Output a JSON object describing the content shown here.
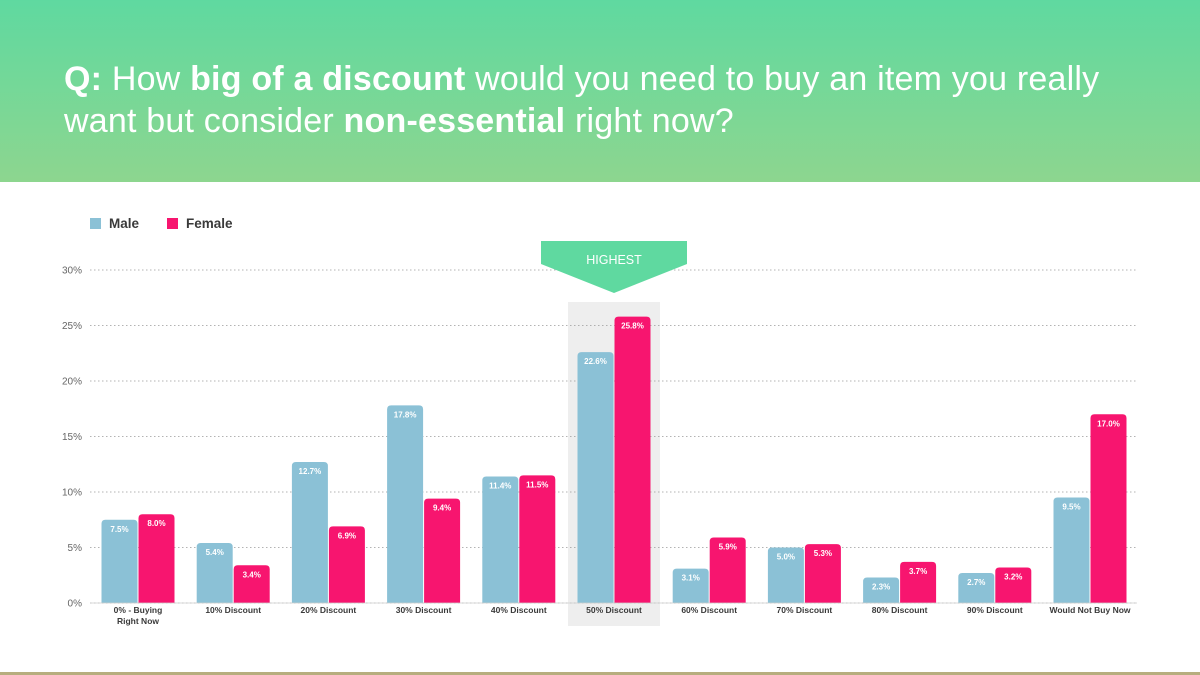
{
  "question": {
    "parts": [
      {
        "text": "Q:",
        "bold": true
      },
      {
        "text": " How ",
        "bold": false
      },
      {
        "text": "big of a discount",
        "bold": true
      },
      {
        "text": " would you need to buy an item you really want but consider ",
        "bold": false
      },
      {
        "text": "non-essential",
        "bold": true
      },
      {
        "text": " right now?",
        "bold": false
      }
    ]
  },
  "legend": {
    "male": "Male",
    "female": "Female"
  },
  "highlight": {
    "label": "HIGHEST",
    "category_index": 5
  },
  "colors": {
    "male": "#8bc1d6",
    "female": "#f7156f",
    "header_top": "#5fd9a0",
    "header_bottom": "#8dd68f",
    "highlight_arrow": "#5fd9a0",
    "highlight_band": "#eeeeee"
  },
  "chart_data": {
    "type": "bar",
    "title": "",
    "xlabel": "",
    "ylabel": "",
    "ylim": [
      0,
      30
    ],
    "yticks": [
      "0%",
      "5%",
      "10%",
      "15%",
      "20%",
      "25%",
      "30%"
    ],
    "ytick_values": [
      0,
      5,
      10,
      15,
      20,
      25,
      30
    ],
    "grid": true,
    "legend_position": "top-left",
    "categories": [
      [
        "0% - Buying",
        "Right Now"
      ],
      [
        "10% Discount"
      ],
      [
        "20% Discount"
      ],
      [
        "30% Discount"
      ],
      [
        "40% Discount"
      ],
      [
        "50% Discount"
      ],
      [
        "60% Discount"
      ],
      [
        "70% Discount"
      ],
      [
        "80% Discount"
      ],
      [
        "90% Discount"
      ],
      [
        "Would Not Buy Now"
      ]
    ],
    "series": [
      {
        "name": "Male",
        "values": [
          7.5,
          5.4,
          12.7,
          17.8,
          11.4,
          22.6,
          3.1,
          5.0,
          2.3,
          2.7,
          9.5
        ],
        "labels": [
          "7.5%",
          "5.4%",
          "12.7%",
          "17.8%",
          "11.4%",
          "22.6%",
          "3.1%",
          "5.0%",
          "2.3%",
          "2.7%",
          "9.5%"
        ]
      },
      {
        "name": "Female",
        "values": [
          8.0,
          3.4,
          6.9,
          9.4,
          11.5,
          25.8,
          5.9,
          5.3,
          3.7,
          3.2,
          17.0
        ],
        "labels": [
          "8.0%",
          "3.4%",
          "6.9%",
          "9.4%",
          "11.5%",
          "25.8%",
          "5.9%",
          "5.3%",
          "3.7%",
          "3.2%",
          "17.0%"
        ]
      }
    ]
  }
}
